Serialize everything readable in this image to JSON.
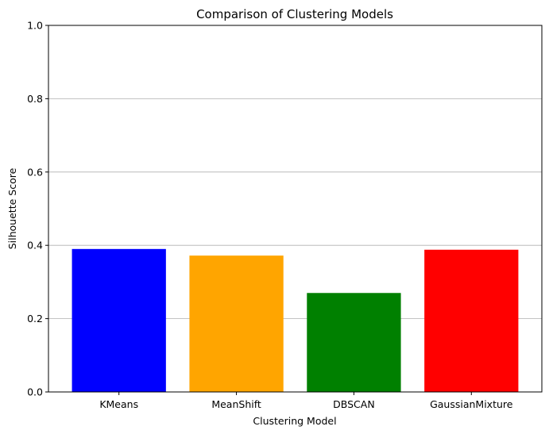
{
  "chart_data": {
    "type": "bar",
    "title": "Comparison of Clustering Models",
    "xlabel": "Clustering Model",
    "ylabel": "Silhouette Score",
    "categories": [
      "KMeans",
      "MeanShift",
      "DBSCAN",
      "GaussianMixture"
    ],
    "values": [
      0.39,
      0.372,
      0.27,
      0.388
    ],
    "colors": [
      "#0000ff",
      "#ffa500",
      "#008000",
      "#ff0000"
    ],
    "ylim": [
      0,
      1.0
    ],
    "yticks": [
      "0.0",
      "0.2",
      "0.4",
      "0.6",
      "0.8",
      "1.0"
    ],
    "grid": "y-major"
  }
}
